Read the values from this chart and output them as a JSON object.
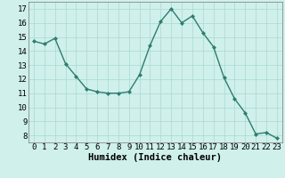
{
  "x": [
    0,
    1,
    2,
    3,
    4,
    5,
    6,
    7,
    8,
    9,
    10,
    11,
    12,
    13,
    14,
    15,
    16,
    17,
    18,
    19,
    20,
    21,
    22,
    23
  ],
  "y": [
    14.7,
    14.5,
    14.9,
    13.1,
    12.2,
    11.3,
    11.1,
    11.0,
    11.0,
    11.1,
    12.3,
    14.4,
    16.1,
    17.0,
    16.0,
    16.5,
    15.3,
    14.3,
    12.1,
    10.6,
    9.6,
    8.1,
    8.2,
    7.8
  ],
  "line_color": "#2e7d6e",
  "marker": "D",
  "marker_size": 2.0,
  "bg_color": "#cff0eb",
  "grid_color": "#aad8d3",
  "xlabel": "Humidex (Indice chaleur)",
  "xlim": [
    -0.5,
    23.5
  ],
  "ylim": [
    7.5,
    17.5
  ],
  "yticks": [
    8,
    9,
    10,
    11,
    12,
    13,
    14,
    15,
    16,
    17
  ],
  "xticks": [
    0,
    1,
    2,
    3,
    4,
    5,
    6,
    7,
    8,
    9,
    10,
    11,
    12,
    13,
    14,
    15,
    16,
    17,
    18,
    19,
    20,
    21,
    22,
    23
  ],
  "xlabel_fontsize": 7.5,
  "tick_fontsize": 6.5,
  "linewidth": 1.0
}
